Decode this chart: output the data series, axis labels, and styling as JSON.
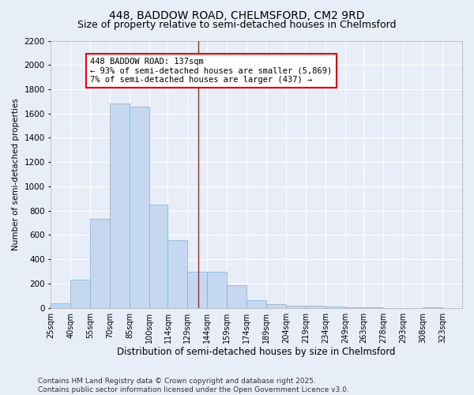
{
  "title": "448, BADDOW ROAD, CHELMSFORD, CM2 9RD",
  "subtitle": "Size of property relative to semi-detached houses in Chelmsford",
  "xlabel": "Distribution of semi-detached houses by size in Chelmsford",
  "ylabel": "Number of semi-detached properties",
  "bin_labels": [
    "25sqm",
    "40sqm",
    "55sqm",
    "70sqm",
    "85sqm",
    "100sqm",
    "114sqm",
    "129sqm",
    "144sqm",
    "159sqm",
    "174sqm",
    "189sqm",
    "204sqm",
    "219sqm",
    "234sqm",
    "249sqm",
    "263sqm",
    "278sqm",
    "293sqm",
    "308sqm",
    "323sqm"
  ],
  "bin_edges": [
    25,
    40,
    55,
    70,
    85,
    100,
    114,
    129,
    144,
    159,
    174,
    189,
    204,
    219,
    234,
    249,
    263,
    278,
    293,
    308,
    323
  ],
  "bar_heights": [
    40,
    230,
    730,
    1680,
    1660,
    850,
    560,
    300,
    295,
    185,
    60,
    30,
    20,
    15,
    10,
    5,
    5,
    0,
    0,
    5
  ],
  "bar_color": "#c5d8f0",
  "bar_edgecolor": "#7bafd4",
  "vline_x": 137,
  "vline_color": "red",
  "annotation_text": "448 BADDOW ROAD: 137sqm\n← 93% of semi-detached houses are smaller (5,869)\n7% of semi-detached houses are larger (437) →",
  "annotation_box_color": "white",
  "annotation_box_edgecolor": "red",
  "ylim": [
    0,
    2200
  ],
  "yticks": [
    0,
    200,
    400,
    600,
    800,
    1000,
    1200,
    1400,
    1600,
    1800,
    2000,
    2200
  ],
  "background_color": "#e8eef8",
  "plot_background_color": "#e8eef8",
  "footer_line1": "Contains HM Land Registry data © Crown copyright and database right 2025.",
  "footer_line2": "Contains public sector information licensed under the Open Government Licence v3.0.",
  "title_fontsize": 10,
  "subtitle_fontsize": 9,
  "xlabel_fontsize": 8.5,
  "ylabel_fontsize": 7.5,
  "annotation_fontsize": 7.5,
  "footer_fontsize": 6.5,
  "tick_fontsize": 7,
  "ytick_fontsize": 7.5
}
